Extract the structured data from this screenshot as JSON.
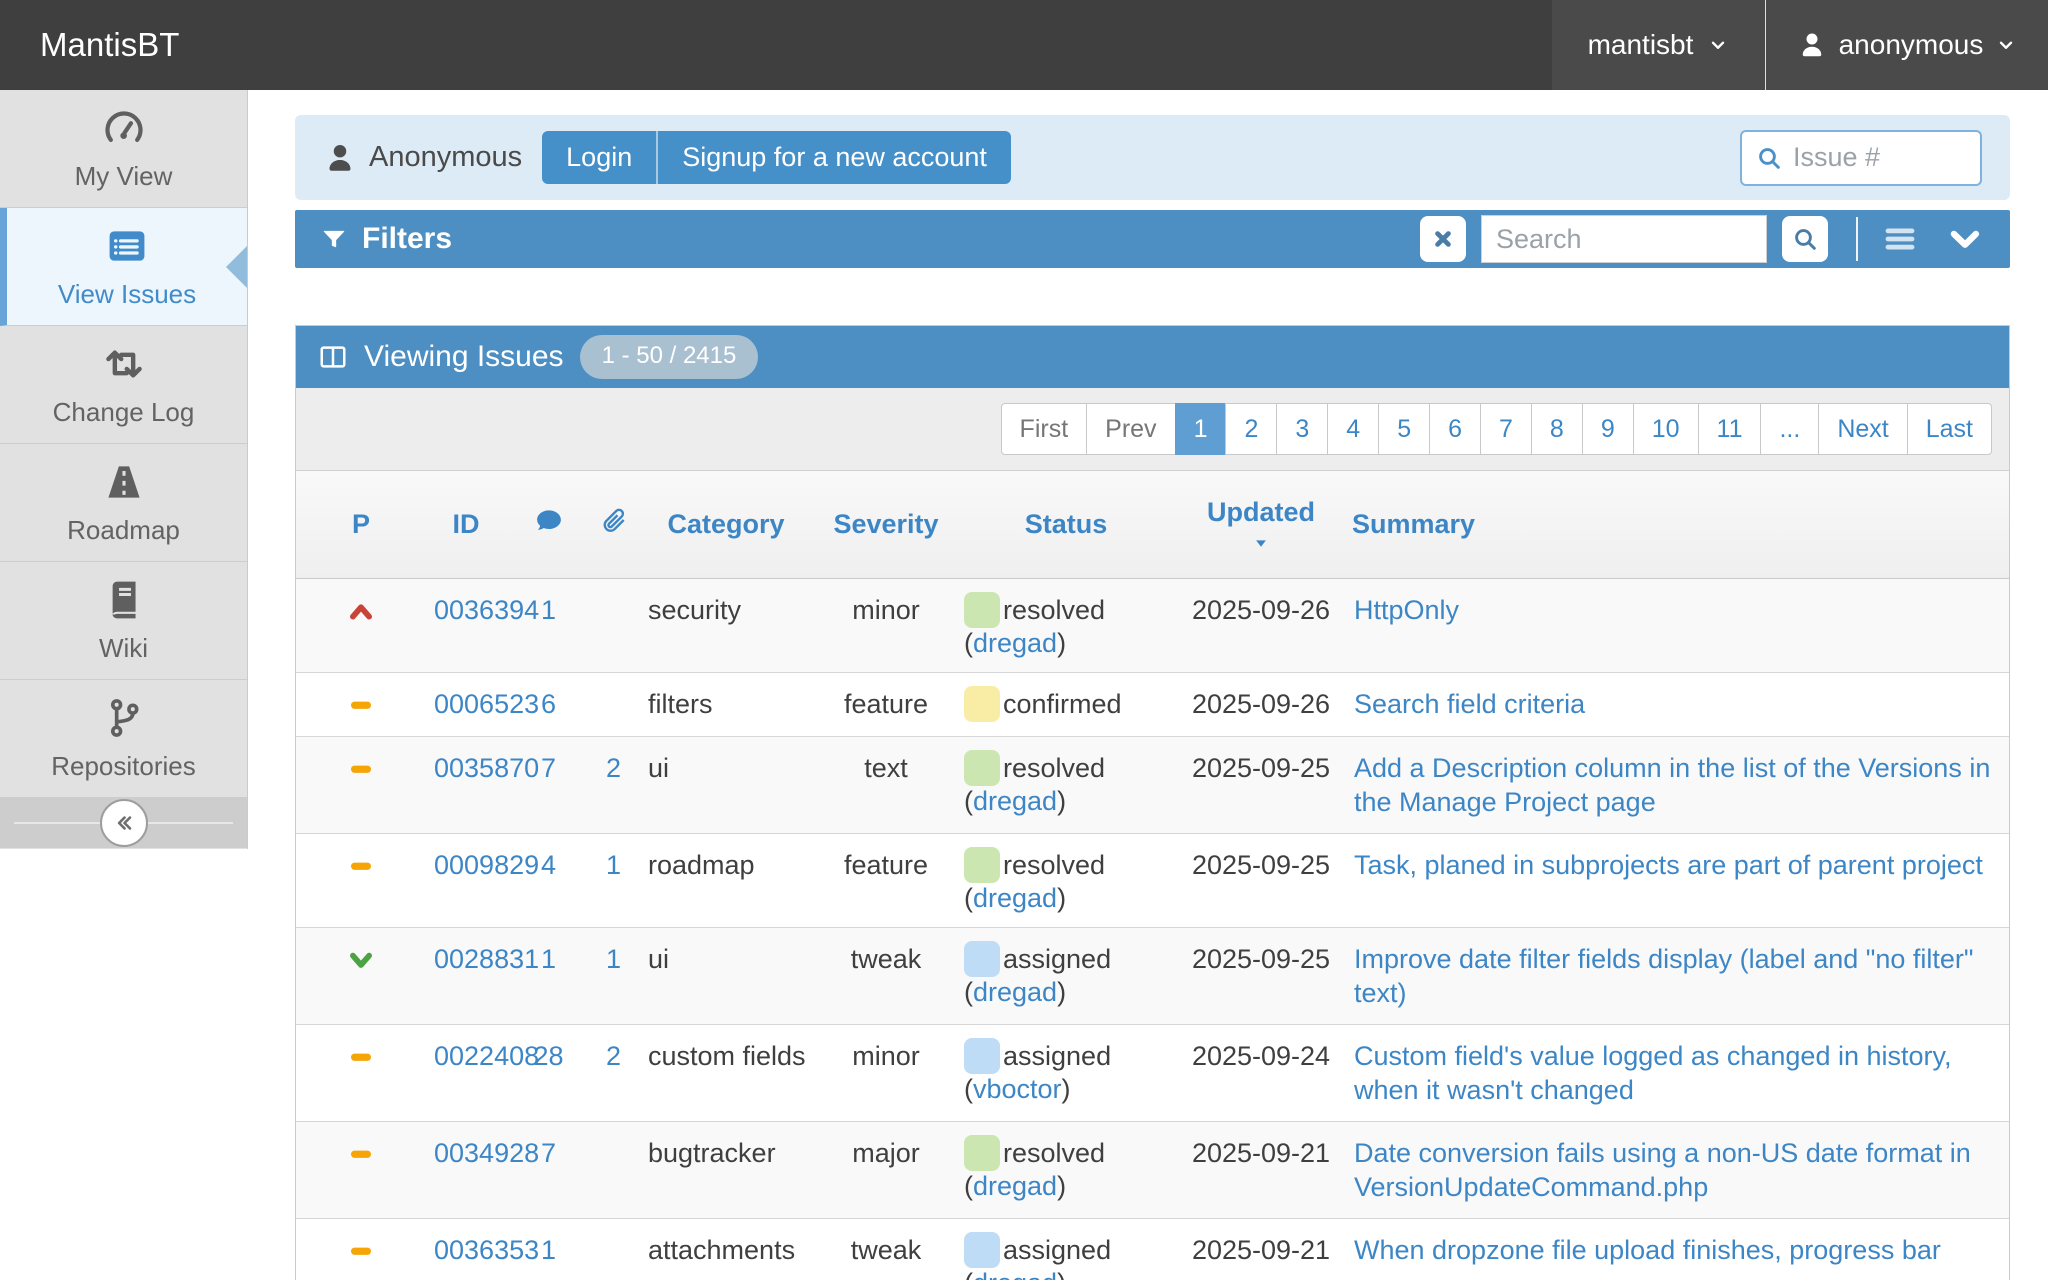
{
  "navbar": {
    "brand": "MantisBT",
    "project": "mantisbt",
    "user": "anonymous"
  },
  "sidebar": {
    "items": [
      {
        "label": "My View",
        "icon": "dashboard-icon",
        "active": false
      },
      {
        "label": "View Issues",
        "icon": "list-alt-icon",
        "active": true
      },
      {
        "label": "Change Log",
        "icon": "refresh-arrows-icon",
        "active": false
      },
      {
        "label": "Roadmap",
        "icon": "road-icon",
        "active": false
      },
      {
        "label": "Wiki",
        "icon": "book-icon",
        "active": false
      },
      {
        "label": "Repositories",
        "icon": "branch-icon",
        "active": false
      }
    ]
  },
  "login_bar": {
    "username": "Anonymous",
    "login_label": "Login",
    "signup_label": "Signup for a new account",
    "issue_search_placeholder": "Issue #"
  },
  "filters": {
    "title": "Filters",
    "search_placeholder": "Search"
  },
  "viewing": {
    "title": "Viewing Issues",
    "range": "1 - 50 / 2415"
  },
  "pagination": [
    {
      "label": "First",
      "state": "disabled"
    },
    {
      "label": "Prev",
      "state": "disabled"
    },
    {
      "label": "1",
      "state": "active"
    },
    {
      "label": "2",
      "state": "link"
    },
    {
      "label": "3",
      "state": "link"
    },
    {
      "label": "4",
      "state": "link"
    },
    {
      "label": "5",
      "state": "link"
    },
    {
      "label": "6",
      "state": "link"
    },
    {
      "label": "7",
      "state": "link"
    },
    {
      "label": "8",
      "state": "link"
    },
    {
      "label": "9",
      "state": "link"
    },
    {
      "label": "10",
      "state": "link"
    },
    {
      "label": "11",
      "state": "link"
    },
    {
      "label": "...",
      "state": "link"
    },
    {
      "label": "Next",
      "state": "link"
    },
    {
      "label": "Last",
      "state": "link"
    }
  ],
  "table": {
    "headers": [
      {
        "label": "P",
        "name": "col-priority"
      },
      {
        "label": "ID",
        "name": "col-id"
      },
      {
        "icon": "comment-icon",
        "name": "col-notes"
      },
      {
        "icon": "attachment-icon",
        "name": "col-attachments"
      },
      {
        "label": "Category",
        "name": "col-category"
      },
      {
        "label": "Severity",
        "name": "col-severity"
      },
      {
        "label": "Status",
        "name": "col-status"
      },
      {
        "label": "Updated",
        "name": "col-updated",
        "sorted": "desc"
      },
      {
        "label": "Summary",
        "name": "col-summary",
        "align": "left"
      }
    ],
    "rows": [
      {
        "priority": "high",
        "id": "0036394",
        "notes": "1",
        "files": "",
        "category": "security",
        "severity": "minor",
        "status": "resolved",
        "handler": "dregad",
        "updated": "2025-09-26",
        "summary": "HttpOnly"
      },
      {
        "priority": "normal",
        "id": "0006523",
        "notes": "6",
        "files": "",
        "category": "filters",
        "severity": "feature",
        "status": "confirmed",
        "handler": "",
        "updated": "2025-09-26",
        "summary": "Search field criteria"
      },
      {
        "priority": "normal",
        "id": "0035870",
        "notes": "7",
        "files": "2",
        "category": "ui",
        "severity": "text",
        "status": "resolved",
        "handler": "dregad",
        "updated": "2025-09-25",
        "summary": "Add a Description column in the list of the Versions in\nthe Manage Project page"
      },
      {
        "priority": "normal",
        "id": "0009829",
        "notes": "4",
        "files": "1",
        "category": "roadmap",
        "severity": "feature",
        "status": "resolved",
        "handler": "dregad",
        "updated": "2025-09-25",
        "summary": "Task, planed in subprojects are part of parent project"
      },
      {
        "priority": "low",
        "id": "0028831",
        "notes": "1",
        "files": "1",
        "category": "ui",
        "severity": "tweak",
        "status": "assigned",
        "handler": "dregad",
        "updated": "2025-09-25",
        "summary": "Improve date filter fields display (label and \"no filter\"\ntext)"
      },
      {
        "priority": "normal",
        "id": "0022408",
        "notes": "28",
        "files": "2",
        "category": "custom fields",
        "severity": "minor",
        "status": "assigned",
        "handler": "vboctor",
        "updated": "2025-09-24",
        "summary": "Custom field's value logged as changed in history,\nwhen it wasn't changed"
      },
      {
        "priority": "normal",
        "id": "0034928",
        "notes": "7",
        "files": "",
        "category": "bugtracker",
        "severity": "major",
        "status": "resolved",
        "handler": "dregad",
        "updated": "2025-09-21",
        "summary": "Date conversion fails using a non-US date format in\nVersionUpdateCommand.php"
      },
      {
        "priority": "normal",
        "id": "0036353",
        "notes": "1",
        "files": "",
        "category": "attachments",
        "severity": "tweak",
        "status": "assigned",
        "handler": "dregad",
        "updated": "2025-09-21",
        "summary": "When dropzone file upload finishes, progress bar"
      }
    ]
  },
  "colors": {
    "accent_blue": "#4d8fc3",
    "link_blue": "#3d86c6",
    "status": {
      "resolved": "#cbe6b1",
      "confirmed": "#f9eda5",
      "assigned": "#bedcf5"
    },
    "priority": {
      "high": "#c94436",
      "normal": "#f5a506",
      "low": "#4da244"
    }
  }
}
